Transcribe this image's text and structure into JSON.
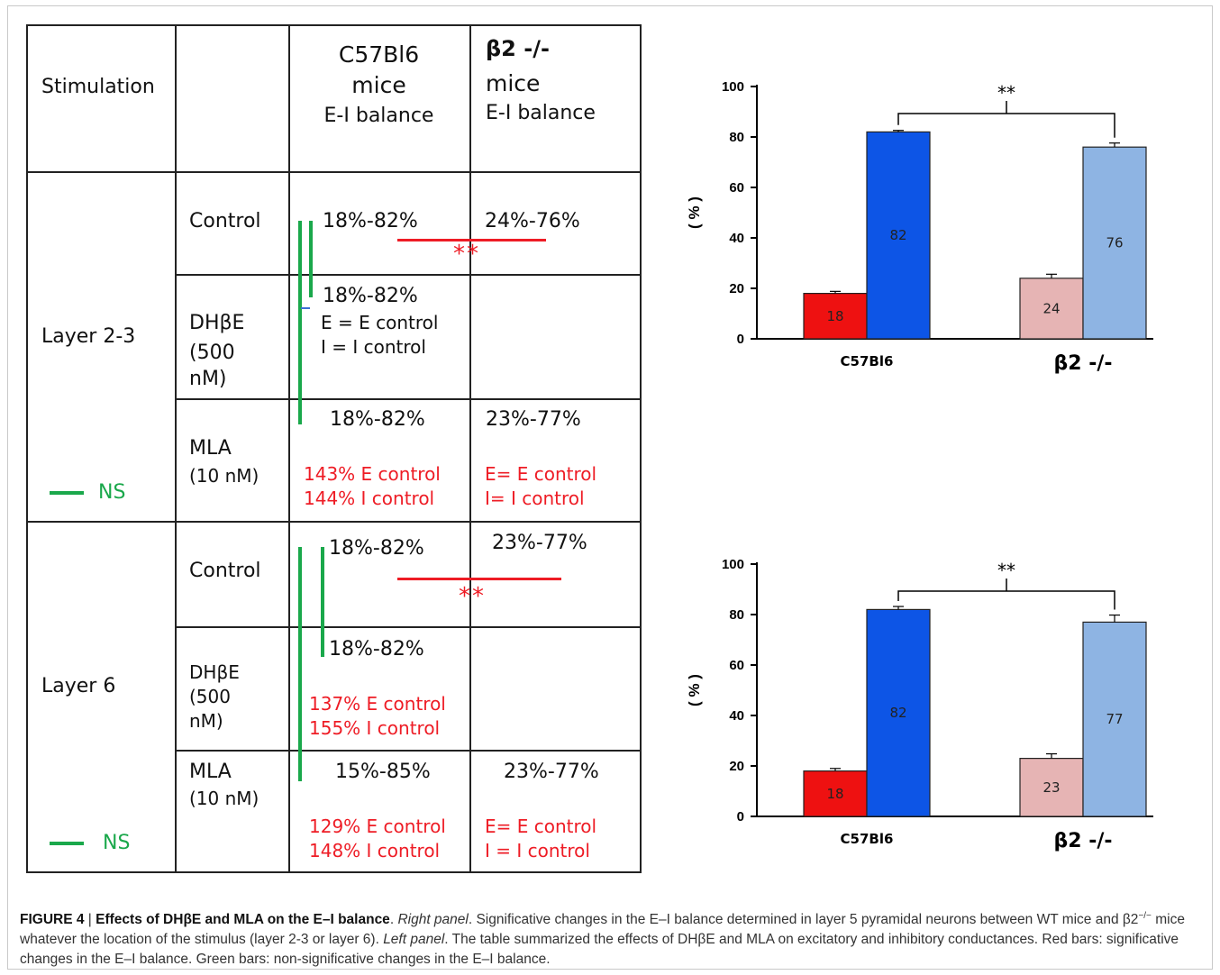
{
  "table": {
    "header": {
      "stimulation": "Stimulation",
      "c57_line1": "C57Bl6",
      "c57_line2": "mice",
      "c57_line3": "E-I balance",
      "b2_line1": "β2 -/-",
      "b2_line2": "mice",
      "b2_line3": "E-I balance"
    },
    "layer23": {
      "label": "Layer  2-3",
      "ns_label": "NS",
      "control": {
        "label": "Control",
        "c57": "18%-82%",
        "b2": "24%-76%",
        "stars": "**"
      },
      "dhbe": {
        "label1": "DHβE",
        "label2": "(500",
        "label3": "nM)",
        "c57": "18%-82%",
        "note1": "E = E control",
        "note2": "I = I control"
      },
      "mla": {
        "label1": "MLA",
        "label2": "(10 nM)",
        "c57": "18%-82%",
        "b2": "23%-77%",
        "c57_note1": "143% E control",
        "c57_note2": "144% I control",
        "b2_note1": "E= E control",
        "b2_note2": "I= I control"
      }
    },
    "layer6": {
      "label": "Layer 6",
      "ns_label": "NS",
      "control": {
        "label": "Control",
        "c57": "18%-82%",
        "b2": "23%-77%",
        "stars": "**"
      },
      "dhbe": {
        "label1": "DHβE",
        "label2": "(500",
        "label3": "nM)",
        "c57": "18%-82%",
        "note1": "137% E control",
        "note2": "155% I control"
      },
      "mla": {
        "label1": "MLA",
        "label2": "(10 nM)",
        "c57": "15%-85%",
        "b2": "23%-77%",
        "c57_note1": "129% E control",
        "c57_note2": "148% I control",
        "b2_note1": "E= E control",
        "b2_note2": "I = I control"
      }
    }
  },
  "chart_data": [
    {
      "type": "bar",
      "categories": [
        "C57Bl6",
        "β2 -/-"
      ],
      "ylabel": "( % )",
      "ylim": [
        0,
        100
      ],
      "yticks": [
        0,
        20,
        40,
        60,
        80,
        100
      ],
      "significance": "**",
      "bars": [
        {
          "category": "C57Bl6",
          "value": 18,
          "label": "18",
          "error": 0.8,
          "color": "#ee1111"
        },
        {
          "category": "C57Bl6",
          "value": 82,
          "label": "82",
          "error": 0.6,
          "color": "#0d55e6"
        },
        {
          "category": "β2 -/-",
          "value": 24,
          "label": "24",
          "error": 1.6,
          "color": "#e6b4b4"
        },
        {
          "category": "β2 -/-",
          "value": 76,
          "label": "76",
          "error": 1.6,
          "color": "#8eb4e3"
        }
      ]
    },
    {
      "type": "bar",
      "categories": [
        "C57Bl6",
        "β2 -/-"
      ],
      "ylabel": "( % )",
      "ylim": [
        0,
        100
      ],
      "yticks": [
        0,
        20,
        40,
        60,
        80,
        100
      ],
      "significance": "**",
      "bars": [
        {
          "category": "C57Bl6",
          "value": 18,
          "label": "18",
          "error": 1.0,
          "color": "#ee1111"
        },
        {
          "category": "C57Bl6",
          "value": 82,
          "label": "82",
          "error": 1.2,
          "color": "#0d55e6"
        },
        {
          "category": "β2 -/-",
          "value": 23,
          "label": "23",
          "error": 1.8,
          "color": "#e6b4b4"
        },
        {
          "category": "β2 -/-",
          "value": 77,
          "label": "77",
          "error": 2.8,
          "color": "#8eb4e3"
        }
      ]
    }
  ],
  "caption": {
    "figure": "FIGURE 4",
    "sep": " | ",
    "title": "Effects of DHβE and MLA on the E–I balance",
    "right_label": "Right panel",
    "right_text": ". Significative changes in the E–I balance determined in layer 5 pyramidal neurons between WT mice and β2",
    "sup": "−/−",
    "right_text2": " mice whatever the location of the stimulus (layer 2-3 or layer 6). ",
    "left_label": "Left panel",
    "left_text": ". The table summarized the effects of DHβE and MLA on excitatory and inhibitory conductances. Red bars: significative changes in the E–I balance. Green bars: non-significative changes in the E–I balance."
  }
}
